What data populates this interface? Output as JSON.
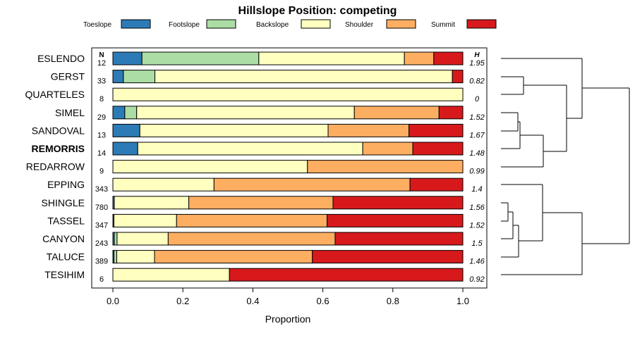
{
  "chart_data": {
    "type": "bar",
    "orientation": "horizontal",
    "stacked": true,
    "title": "Hillslope Position: competing",
    "xlabel": "Proportion",
    "xlim": [
      0,
      1
    ],
    "xticks": [
      "0.0",
      "0.2",
      "0.4",
      "0.6",
      "0.8",
      "1.0"
    ],
    "n_header": "N",
    "h_header": "H",
    "legend": [
      {
        "name": "Toeslope",
        "color": "#2c7bb6"
      },
      {
        "name": "Footslope",
        "color": "#abdda4"
      },
      {
        "name": "Backslope",
        "color": "#ffffbf"
      },
      {
        "name": "Shoulder",
        "color": "#fdae61"
      },
      {
        "name": "Summit",
        "color": "#d7191c"
      }
    ],
    "categories": [
      "ESLENDO",
      "GERST",
      "QUARTELES",
      "SIMEL",
      "SANDOVAL",
      "REMORRIS",
      "REDARROW",
      "EPPING",
      "SHINGLE",
      "TASSEL",
      "CANYON",
      "TALUCE",
      "TESIHIM"
    ],
    "highlight": "REMORRIS",
    "n": [
      "12",
      "33",
      "8",
      "29",
      "13",
      "14",
      "9",
      "343",
      "780",
      "347",
      "243",
      "389",
      "6"
    ],
    "h": [
      "1.95",
      "0.82",
      "0",
      "1.52",
      "1.67",
      "1.48",
      "0.99",
      "1.4",
      "1.56",
      "1.52",
      "1.5",
      "1.46",
      "0.92"
    ],
    "rows": [
      [
        0.083,
        0.334,
        0.416,
        0.084,
        0.083
      ],
      [
        0.03,
        0.09,
        0.85,
        0.0,
        0.03
      ],
      [
        0.0,
        0.0,
        1.0,
        0.0,
        0.0
      ],
      [
        0.034,
        0.034,
        0.622,
        0.242,
        0.068
      ],
      [
        0.077,
        0.0,
        0.538,
        0.231,
        0.154
      ],
      [
        0.071,
        0.0,
        0.643,
        0.143,
        0.143
      ],
      [
        0.0,
        0.0,
        0.556,
        0.444,
        0.0
      ],
      [
        0.0,
        0.0,
        0.289,
        0.56,
        0.151
      ],
      [
        0.004,
        0.0,
        0.213,
        0.412,
        0.371
      ],
      [
        0.003,
        0.0,
        0.179,
        0.43,
        0.388
      ],
      [
        0.004,
        0.008,
        0.146,
        0.477,
        0.365
      ],
      [
        0.003,
        0.008,
        0.108,
        0.451,
        0.43
      ],
      [
        0.0,
        0.0,
        0.333,
        0.0,
        0.667
      ]
    ]
  }
}
